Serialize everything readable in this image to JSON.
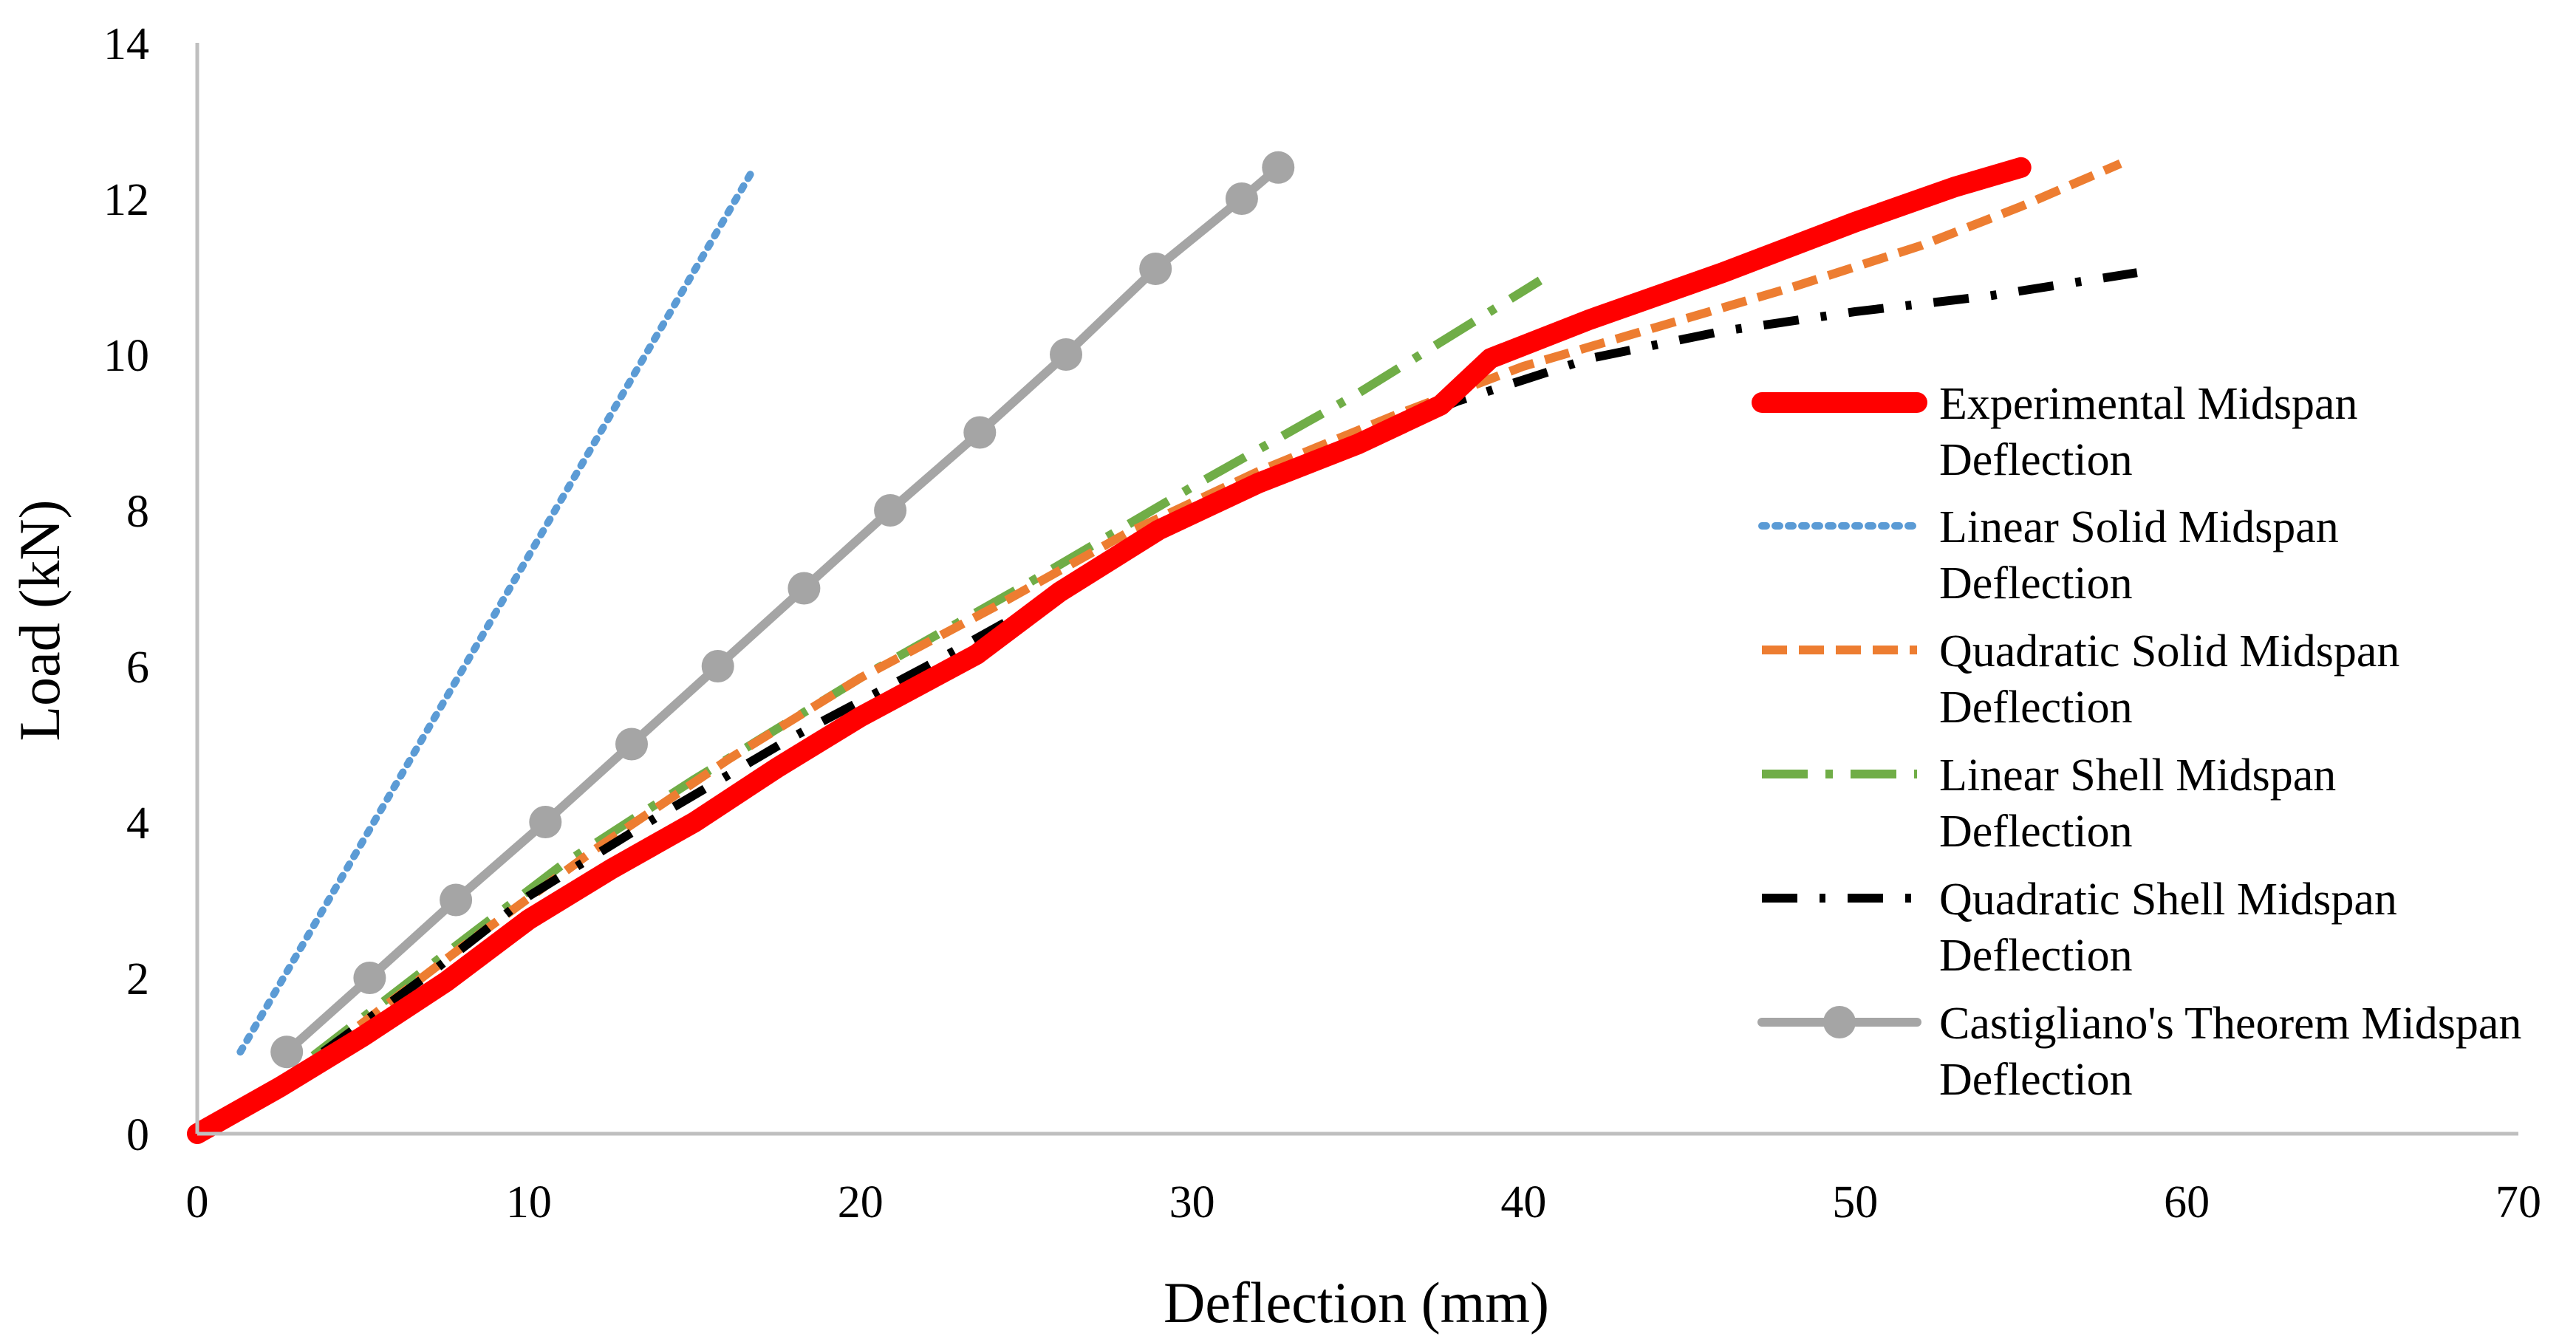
{
  "chart_data": {
    "type": "line",
    "title": "",
    "xlabel": "Deflection (mm)",
    "ylabel": "Load (kN)",
    "xlim": [
      0,
      70
    ],
    "ylim": [
      0,
      14
    ],
    "xticks": [
      0,
      10,
      20,
      30,
      40,
      50,
      60,
      70
    ],
    "yticks": [
      0,
      2,
      4,
      6,
      8,
      10,
      12,
      14
    ],
    "grid": false,
    "legend_position": "right",
    "series": [
      {
        "name": "Experimental Midspan Deflection",
        "label_lines": [
          "Experimental Midspan",
          "Deflection"
        ],
        "color": "#ff0000",
        "style": "solid-thick",
        "points": [
          [
            0,
            0
          ],
          [
            2.5,
            0.6
          ],
          [
            5,
            1.25
          ],
          [
            7.5,
            1.95
          ],
          [
            10,
            2.75
          ],
          [
            12.5,
            3.4
          ],
          [
            15,
            4.0
          ],
          [
            17.5,
            4.7
          ],
          [
            20,
            5.35
          ],
          [
            23.5,
            6.15
          ],
          [
            26,
            6.95
          ],
          [
            29,
            7.75
          ],
          [
            32,
            8.35
          ],
          [
            35,
            8.85
          ],
          [
            37.5,
            9.35
          ],
          [
            39,
            9.95
          ],
          [
            42,
            10.45
          ],
          [
            46,
            11.05
          ],
          [
            50,
            11.7
          ],
          [
            53,
            12.15
          ],
          [
            55,
            12.4
          ]
        ]
      },
      {
        "name": "Linear Solid Midspan Deflection",
        "label_lines": [
          "Linear Solid Midspan",
          "Deflection"
        ],
        "color": "#5b9bd5",
        "style": "dotted",
        "points": [
          [
            1.3,
            1.05
          ],
          [
            16.8,
            12.4
          ]
        ]
      },
      {
        "name": "Quadratic Solid Midspan Deflection",
        "label_lines": [
          "Quadratic Solid Midspan",
          "Deflection"
        ],
        "color": "#ed7d31",
        "style": "dashed",
        "points": [
          [
            4,
            1.1
          ],
          [
            8,
            2.4
          ],
          [
            12,
            3.65
          ],
          [
            16,
            4.8
          ],
          [
            20,
            5.85
          ],
          [
            24,
            6.75
          ],
          [
            28,
            7.7
          ],
          [
            32,
            8.5
          ],
          [
            36,
            9.2
          ],
          [
            40,
            9.85
          ],
          [
            44,
            10.35
          ],
          [
            48,
            10.85
          ],
          [
            52,
            11.4
          ],
          [
            55,
            11.9
          ],
          [
            58,
            12.45
          ]
        ]
      },
      {
        "name": "Linear Shell Midspan Deflection",
        "label_lines": [
          "Linear Shell Midspan",
          "Deflection"
        ],
        "color": "#70ad47",
        "style": "dash-dot",
        "points": [
          [
            3.5,
            1.0
          ],
          [
            7,
            2.15
          ],
          [
            11,
            3.45
          ],
          [
            15,
            4.55
          ],
          [
            20,
            5.85
          ],
          [
            25,
            7.05
          ],
          [
            30,
            8.3
          ],
          [
            35,
            9.5
          ],
          [
            40.5,
            10.95
          ]
        ]
      },
      {
        "name": "Quadratic Shell Midspan Deflection",
        "label_lines": [
          "Quadratic Shell Midspan",
          "Deflection"
        ],
        "color": "#000000",
        "style": "dash-dot-dot",
        "points": [
          [
            3.8,
            1.05
          ],
          [
            7,
            2.05
          ],
          [
            10,
            3.05
          ],
          [
            14,
            4.1
          ],
          [
            18,
            5.1
          ],
          [
            22,
            6.0
          ],
          [
            26,
            6.95
          ],
          [
            30,
            7.95
          ],
          [
            34,
            8.7
          ],
          [
            38,
            9.4
          ],
          [
            42,
            9.95
          ],
          [
            46,
            10.3
          ],
          [
            50,
            10.55
          ],
          [
            54,
            10.75
          ],
          [
            58.5,
            11.05
          ]
        ]
      },
      {
        "name": "Castigliano's Theorem Midspan Deflection",
        "label_lines": [
          "Castigliano's Theorem Midspan",
          "Deflection"
        ],
        "color": "#a5a5a5",
        "style": "solid-markers",
        "points": [
          [
            2.7,
            1.05
          ],
          [
            5.2,
            2.0
          ],
          [
            7.8,
            3.0
          ],
          [
            10.5,
            4.0
          ],
          [
            13.1,
            5.0
          ],
          [
            15.7,
            6.0
          ],
          [
            18.3,
            7.0
          ],
          [
            20.9,
            8.0
          ],
          [
            23.6,
            9.0
          ],
          [
            26.2,
            10.0
          ],
          [
            28.9,
            11.1
          ],
          [
            31.5,
            12.0
          ],
          [
            32.6,
            12.4
          ]
        ]
      }
    ]
  }
}
